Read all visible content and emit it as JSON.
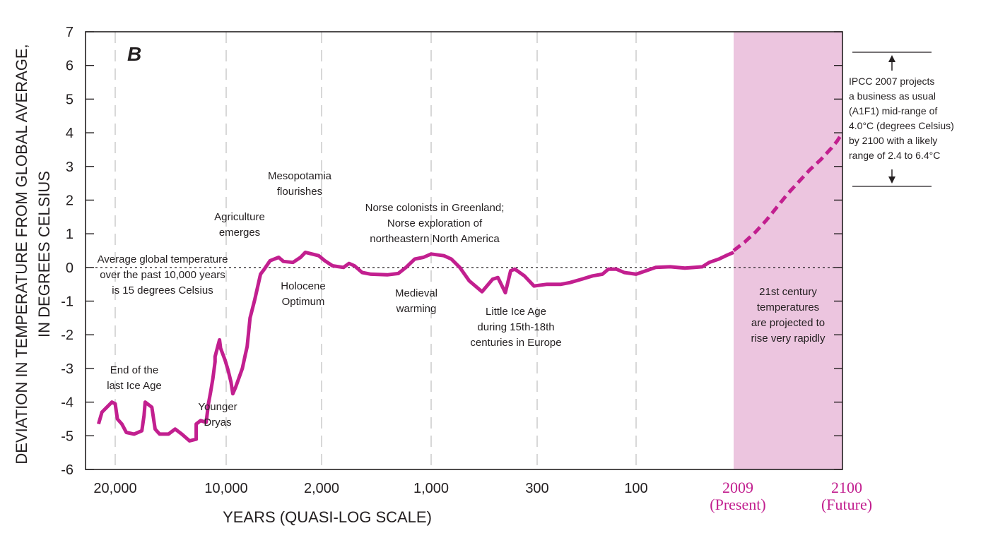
{
  "chart_data": {
    "type": "line",
    "panel_label": "B",
    "title": "",
    "xlabel": "YEARS (QUASI-LOG SCALE)",
    "ylabel_lines": [
      "DEVIATION IN TEMPERATURE FROM GLOBAL AVERAGE,",
      "IN DEGREES CELSIUS"
    ],
    "ylim": [
      -6,
      7
    ],
    "yticks": [
      7,
      6,
      5,
      4,
      3,
      2,
      1,
      0,
      -1,
      -2,
      -3,
      -4,
      -5,
      -6
    ],
    "x_scale": "quasi-log (tick index units)",
    "xticks": [
      {
        "index": 0,
        "label": "20,000"
      },
      {
        "index": 1,
        "label": "10,000"
      },
      {
        "index": 2,
        "label": "2,000"
      },
      {
        "index": 3,
        "label": "1,000"
      },
      {
        "index": 4,
        "label": "300"
      },
      {
        "index": 5,
        "label": "100"
      },
      {
        "index": 6,
        "label": "2009",
        "sublabel": "(Present)",
        "highlight": true
      },
      {
        "index": 7,
        "label": "2100",
        "sublabel": "(Future)",
        "highlight": true
      }
    ],
    "grid": "vertical dashed at x ticks 0-5",
    "reference_line": {
      "y": 0,
      "style": "dotted"
    },
    "colors": {
      "series": "#c21f8f",
      "projection_band": "#ecc5df",
      "highlight_text": "#c21f8f",
      "text": "#231f20",
      "grid": "#c8c8c8"
    },
    "series": [
      {
        "name": "Temperature deviation (observed/reconstructed)",
        "style": "solid",
        "points": [
          [
            -0.15,
            -4.65
          ],
          [
            -0.12,
            -4.3
          ],
          [
            -0.03,
            -4.0
          ],
          [
            0.0,
            -4.05
          ],
          [
            0.02,
            -4.5
          ],
          [
            0.06,
            -4.65
          ],
          [
            0.1,
            -4.9
          ],
          [
            0.17,
            -4.95
          ],
          [
            0.24,
            -4.85
          ],
          [
            0.26,
            -4.4
          ],
          [
            0.27,
            -4.0
          ],
          [
            0.33,
            -4.15
          ],
          [
            0.36,
            -4.8
          ],
          [
            0.4,
            -4.95
          ],
          [
            0.48,
            -4.95
          ],
          [
            0.54,
            -4.8
          ],
          [
            0.6,
            -4.95
          ],
          [
            0.67,
            -5.15
          ],
          [
            0.73,
            -5.1
          ],
          [
            0.73,
            -4.65
          ],
          [
            0.77,
            -4.55
          ],
          [
            0.82,
            -4.6
          ],
          [
            0.84,
            -4.05
          ],
          [
            0.86,
            -3.7
          ],
          [
            0.88,
            -3.3
          ],
          [
            0.9,
            -2.8
          ],
          [
            0.9,
            -2.65
          ],
          [
            0.94,
            -2.15
          ],
          [
            0.95,
            -2.4
          ],
          [
            0.99,
            -2.75
          ],
          [
            1.02,
            -3.05
          ],
          [
            1.05,
            -3.4
          ],
          [
            1.07,
            -3.75
          ],
          [
            1.1,
            -3.55
          ],
          [
            1.17,
            -3.0
          ],
          [
            1.2,
            -2.6
          ],
          [
            1.22,
            -2.35
          ],
          [
            1.25,
            -1.5
          ],
          [
            1.3,
            -0.95
          ],
          [
            1.36,
            -0.2
          ],
          [
            1.4,
            -0.05
          ],
          [
            1.46,
            0.2
          ],
          [
            1.55,
            0.3
          ],
          [
            1.6,
            0.18
          ],
          [
            1.7,
            0.15
          ],
          [
            1.78,
            0.3
          ],
          [
            1.83,
            0.45
          ],
          [
            1.9,
            0.4
          ],
          [
            1.97,
            0.35
          ],
          [
            2.03,
            0.2
          ],
          [
            2.1,
            0.05
          ],
          [
            2.2,
            0.0
          ],
          [
            2.25,
            0.12
          ],
          [
            2.3,
            0.05
          ],
          [
            2.37,
            -0.15
          ],
          [
            2.45,
            -0.2
          ],
          [
            2.6,
            -0.22
          ],
          [
            2.7,
            -0.18
          ],
          [
            2.77,
            0.0
          ],
          [
            2.85,
            0.25
          ],
          [
            2.93,
            0.3
          ],
          [
            3.0,
            0.4
          ],
          [
            3.12,
            0.35
          ],
          [
            3.19,
            0.25
          ],
          [
            3.27,
            0.0
          ],
          [
            3.36,
            -0.4
          ],
          [
            3.48,
            -0.72
          ],
          [
            3.58,
            -0.35
          ],
          [
            3.63,
            -0.3
          ],
          [
            3.7,
            -0.75
          ],
          [
            3.75,
            -0.1
          ],
          [
            3.79,
            -0.05
          ],
          [
            3.88,
            -0.25
          ],
          [
            3.97,
            -0.55
          ],
          [
            4.1,
            -0.5
          ],
          [
            4.24,
            -0.5
          ],
          [
            4.33,
            -0.45
          ],
          [
            4.45,
            -0.35
          ],
          [
            4.56,
            -0.25
          ],
          [
            4.66,
            -0.2
          ],
          [
            4.72,
            -0.05
          ],
          [
            4.8,
            -0.05
          ],
          [
            4.88,
            -0.15
          ],
          [
            5.0,
            -0.2
          ],
          [
            5.1,
            -0.1
          ],
          [
            5.2,
            0.0
          ],
          [
            5.35,
            0.02
          ],
          [
            5.5,
            -0.02
          ],
          [
            5.6,
            0.0
          ],
          [
            5.68,
            0.02
          ],
          [
            5.75,
            0.15
          ],
          [
            5.85,
            0.25
          ],
          [
            5.92,
            0.35
          ],
          [
            6.0,
            0.45
          ]
        ]
      },
      {
        "name": "IPCC 2007 projection (A1F1 mid-range)",
        "style": "dashed",
        "points": [
          [
            6.0,
            0.5
          ],
          [
            6.1,
            0.75
          ],
          [
            6.2,
            1.05
          ],
          [
            6.3,
            1.4
          ],
          [
            6.4,
            1.8
          ],
          [
            6.5,
            2.2
          ],
          [
            6.6,
            2.55
          ],
          [
            6.7,
            2.9
          ],
          [
            6.8,
            3.2
          ],
          [
            6.9,
            3.55
          ],
          [
            6.95,
            3.75
          ],
          [
            7.0,
            4.0
          ]
        ]
      }
    ],
    "projection_band": {
      "x_from": 6,
      "x_to": 7
    },
    "annotations": [
      {
        "id": "ice-age",
        "lines": [
          "End of the",
          "last Ice Age"
        ]
      },
      {
        "id": "younger-dryas",
        "lines": [
          "Younger",
          "Dryas"
        ]
      },
      {
        "id": "avg-temp",
        "lines": [
          "Average global temperature",
          "over the past 10,000 years",
          "is 15 degrees Celsius"
        ]
      },
      {
        "id": "agriculture",
        "lines": [
          "Agriculture",
          "emerges"
        ]
      },
      {
        "id": "mesopotamia",
        "lines": [
          "Mesopotamia",
          "flourishes"
        ]
      },
      {
        "id": "holocene",
        "lines": [
          "Holocene",
          "Optimum"
        ]
      },
      {
        "id": "norse",
        "lines": [
          "Norse colonists in Greenland;",
          "Norse exploration of",
          "northeastern North America"
        ]
      },
      {
        "id": "medieval",
        "lines": [
          "Medieval",
          "warming"
        ]
      },
      {
        "id": "little-ice-age",
        "lines": [
          "Little Ice Age",
          "during 15th-18th",
          "centuries in Europe"
        ]
      },
      {
        "id": "21st-century",
        "lines": [
          "21st century",
          "temperatures",
          "are projected to",
          "rise very rapidly"
        ]
      },
      {
        "id": "ipcc",
        "lines": [
          "IPCC 2007 projects",
          "a business as usual",
          "(A1F1) mid-range of",
          "4.0°C (degrees Celsius)",
          "by 2100 with a likely",
          "range of 2.4 to 6.4°C"
        ]
      }
    ],
    "ipcc_range": {
      "mid": 4.0,
      "low": 2.4,
      "high": 6.4,
      "units": "°C"
    }
  }
}
